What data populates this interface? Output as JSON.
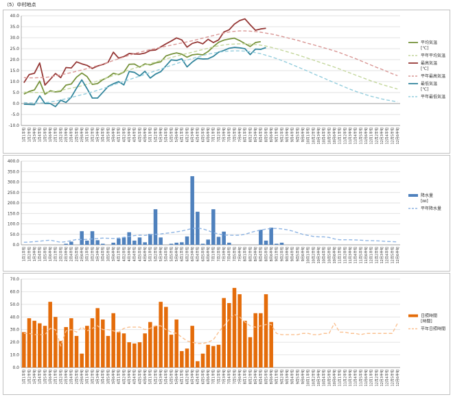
{
  "title": "（5）中村地点",
  "colors": {
    "temp_avg": "#77933c",
    "temp_max": "#953735",
    "temp_min": "#31859c",
    "norm_avg": "#c3d69b",
    "norm_max": "#d99694",
    "norm_min": "#93cddd",
    "precip": "#4f81bd",
    "norm_precip": "#8db3e2",
    "sun": "#e46c0a",
    "norm_sun": "#fac090",
    "grid": "#d9d9d9"
  },
  "x_ticks": [
    "1月1半旬",
    "1月2半旬",
    "1月3半旬",
    "1月4半旬",
    "1月5半旬",
    "1月6半旬",
    "2月1半旬",
    "2月2半旬",
    "2月3半旬",
    "2月4半旬",
    "2月5半旬",
    "2月6半旬",
    "3月1半旬",
    "3月2半旬",
    "3月3半旬",
    "3月4半旬",
    "3月5半旬",
    "3月6半旬",
    "4月1半旬",
    "4月2半旬",
    "4月3半旬",
    "4月4半旬",
    "4月5半旬",
    "4月6半旬",
    "5月1半旬",
    "5月2半旬",
    "5月3半旬",
    "5月4半旬",
    "5月5半旬",
    "5月6半旬",
    "6月1半旬",
    "6月2半旬",
    "6月3半旬",
    "6月4半旬",
    "6月5半旬",
    "6月6半旬",
    "7月1半旬",
    "7月2半旬",
    "7月3半旬",
    "7月4半旬",
    "7月5半旬",
    "7月6半旬",
    "8月1半旬",
    "8月2半旬",
    "8月3半旬",
    "8月4半旬",
    "8月5半旬",
    "8月6半旬",
    "9月1半旬",
    "9月2半旬",
    "9月3半旬",
    "9月4半旬",
    "9月5半旬",
    "9月6半旬",
    "10月1半旬",
    "10月2半旬",
    "10月3半旬",
    "10月4半旬",
    "10月5半旬",
    "10月6半旬",
    "11月1半旬",
    "11月2半旬",
    "11月3半旬",
    "11月4半旬",
    "11月5半旬",
    "11月6半旬",
    "12月1半旬",
    "12月2半旬",
    "12月3半旬",
    "12月4半旬",
    "12月5半旬",
    "12月6半旬"
  ],
  "chart_data": [
    {
      "type": "line",
      "ylim": [
        -10,
        40
      ],
      "yticks": [
        "-10.0",
        "-5.0",
        "0.0",
        "5.0",
        "10.0",
        "15.0",
        "20.0",
        "25.0",
        "30.0",
        "35.0",
        "40.0"
      ],
      "series": [
        {
          "name": "平均気温",
          "unit": "[℃]",
          "style": "solid",
          "color_key": "temp_avg",
          "values": [
            4.3,
            5.5,
            6.2,
            10.2,
            4.2,
            5.8,
            5.3,
            5.6,
            8.4,
            8.9,
            12.0,
            13.9,
            12.3,
            8.7,
            9.1,
            10.9,
            12.0,
            13.8,
            13.2,
            14.3,
            17.9,
            18.0,
            16.6,
            18.1,
            17.6,
            18.5,
            19.0,
            21.7,
            22.5,
            23.1,
            22.5,
            21.1,
            22.2,
            22.5,
            22.2,
            23.7,
            25.9,
            27.9,
            28.9,
            29.4,
            29.8,
            28.7,
            27.3,
            26.0,
            27.8,
            28.2,
            null,
            null,
            null,
            null,
            null,
            null,
            null,
            null,
            null,
            null,
            null,
            null,
            null,
            null,
            null,
            null,
            null,
            null,
            null,
            null,
            null,
            null,
            null,
            null,
            null,
            null
          ]
        },
        {
          "name": "平年平均気温",
          "style": "dashed",
          "color_key": "norm_avg",
          "values": [
            5.2,
            5.1,
            5.0,
            5.0,
            5.1,
            5.3,
            5.6,
            6.0,
            6.5,
            7.0,
            7.5,
            8.1,
            8.8,
            9.5,
            10.3,
            11.1,
            11.9,
            12.8,
            13.6,
            14.5,
            15.3,
            16.1,
            16.8,
            17.5,
            18.2,
            18.9,
            19.6,
            20.3,
            21.0,
            21.6,
            22.2,
            22.8,
            23.4,
            24.0,
            24.6,
            25.2,
            25.8,
            26.3,
            26.7,
            27.0,
            27.1,
            27.2,
            27.2,
            27.1,
            26.9,
            26.6,
            26.2,
            25.6,
            25.0,
            24.3,
            23.6,
            22.9,
            22.2,
            21.4,
            20.6,
            19.8,
            19.0,
            18.2,
            17.4,
            16.6,
            15.7,
            14.8,
            13.9,
            13.0,
            12.1,
            11.2,
            10.3,
            9.5,
            8.7,
            8.0,
            7.3,
            6.6
          ]
        },
        {
          "name": "最高気温",
          "unit": "[℃]",
          "style": "solid",
          "color_key": "temp_max",
          "values": [
            9.5,
            13.2,
            13.8,
            18.5,
            8.4,
            11.0,
            13.7,
            11.8,
            16.4,
            16.2,
            19.0,
            18.1,
            17.4,
            16.0,
            17.1,
            17.8,
            18.8,
            23.4,
            20.7,
            21.4,
            22.8,
            22.6,
            22.5,
            23.0,
            24.2,
            24.4,
            25.8,
            27.2,
            28.5,
            29.9,
            29.0,
            25.7,
            27.4,
            28.1,
            27.2,
            29.3,
            27.8,
            29.0,
            32.6,
            33.6,
            36.2,
            37.8,
            38.6,
            35.9,
            33.4,
            34.0,
            34.3,
            null,
            null,
            null,
            null,
            null,
            null,
            null,
            null,
            null,
            null,
            null,
            null,
            null,
            null,
            null,
            null,
            null,
            null,
            null,
            null,
            null,
            null,
            null,
            null,
            null
          ]
        },
        {
          "name": "平年最高気温",
          "style": "dashed",
          "color_key": "norm_max",
          "values": [
            11.8,
            11.7,
            11.7,
            11.8,
            11.9,
            12.2,
            12.6,
            13.1,
            13.6,
            14.1,
            14.7,
            15.3,
            15.9,
            16.6,
            17.3,
            18.0,
            18.8,
            19.6,
            20.4,
            21.2,
            22.0,
            22.7,
            23.4,
            24.0,
            24.6,
            25.1,
            25.6,
            26.1,
            26.6,
            27.1,
            27.6,
            28.1,
            28.6,
            29.2,
            29.8,
            30.4,
            31.0,
            31.6,
            32.1,
            32.6,
            32.9,
            33.1,
            33.1,
            33.0,
            32.8,
            32.5,
            32.1,
            31.7,
            31.2,
            30.6,
            30.0,
            29.4,
            28.8,
            28.1,
            27.4,
            26.8,
            26.1,
            25.4,
            24.7,
            24.0,
            23.2,
            22.3,
            21.4,
            20.5,
            19.5,
            18.5,
            17.5,
            16.5,
            15.6,
            14.6,
            13.6,
            12.7
          ]
        },
        {
          "name": "最低気温",
          "unit": "[℃]",
          "style": "solid",
          "color_key": "temp_min",
          "values": [
            -0.3,
            -0.4,
            -0.5,
            3.5,
            0.0,
            0.0,
            -1.4,
            1.5,
            0.5,
            2.9,
            7.0,
            10.8,
            6.8,
            2.5,
            2.5,
            5.1,
            7.8,
            9.0,
            10.0,
            8.5,
            14.6,
            14.2,
            12.6,
            14.7,
            11.6,
            13.4,
            14.5,
            17.2,
            19.9,
            19.6,
            20.4,
            16.7,
            18.9,
            20.6,
            20.3,
            20.4,
            21.5,
            23.4,
            24.2,
            25.2,
            25.6,
            25.4,
            25.0,
            22.3,
            24.8,
            24.7,
            25.5,
            null,
            null,
            null,
            null,
            null,
            null,
            null,
            null,
            null,
            null,
            null,
            null,
            null,
            null,
            null,
            null,
            null,
            null,
            null,
            null,
            null,
            null,
            null,
            null,
            null
          ]
        },
        {
          "name": "平年最低気温",
          "style": "dashed",
          "color_key": "norm_min",
          "values": [
            0.5,
            0.3,
            0.2,
            0.2,
            0.4,
            0.7,
            1.1,
            1.6,
            2.2,
            2.8,
            3.4,
            4.0,
            4.6,
            5.3,
            6.0,
            6.8,
            7.6,
            8.5,
            9.3,
            10.1,
            10.9,
            11.7,
            12.5,
            13.3,
            14.1,
            14.9,
            15.7,
            16.6,
            17.4,
            18.2,
            19.0,
            19.8,
            20.5,
            21.2,
            21.9,
            22.5,
            23.0,
            23.4,
            23.7,
            23.9,
            24.0,
            24.0,
            23.9,
            23.6,
            23.2,
            22.7,
            22.0,
            21.3,
            20.5,
            19.6,
            18.7,
            17.7,
            16.7,
            15.7,
            14.7,
            13.6,
            12.6,
            11.6,
            10.5,
            9.5,
            8.5,
            7.5,
            6.5,
            5.6,
            4.8,
            4.0,
            3.3,
            2.7,
            2.1,
            1.6,
            1.2,
            0.8
          ]
        }
      ]
    },
    {
      "type": "bar",
      "ylim": [
        0,
        400
      ],
      "yticks": [
        "0.0",
        "50.0",
        "100.0",
        "150.0",
        "200.0",
        "250.0",
        "300.0",
        "350.0",
        "400.0"
      ],
      "series": [
        {
          "name": "降水量",
          "unit": "[㎜]",
          "style": "bar",
          "color_key": "precip",
          "values": [
            0,
            0,
            0,
            0,
            0,
            0,
            0,
            0,
            5,
            15,
            0,
            65,
            20,
            65,
            22,
            5,
            0,
            10,
            30,
            35,
            60,
            20,
            35,
            12,
            52,
            170,
            35,
            0,
            5,
            10,
            12,
            40,
            328,
            158,
            5,
            25,
            170,
            38,
            63,
            10,
            0,
            0,
            0,
            0,
            0,
            72,
            20,
            82,
            5,
            10,
            null,
            null,
            null,
            null,
            null,
            null,
            null,
            null,
            null,
            null,
            null,
            null,
            null,
            null,
            null,
            null,
            null,
            null,
            null,
            null,
            null,
            null
          ]
        },
        {
          "name": "平年降水量",
          "style": "dashed",
          "color_key": "norm_precip",
          "values": [
            12,
            13,
            15,
            17,
            20,
            22,
            17,
            12,
            15,
            20,
            25,
            25,
            26,
            28,
            30,
            32,
            31,
            30,
            32,
            36,
            40,
            44,
            46,
            45,
            48,
            50,
            52,
            55,
            58,
            62,
            66,
            72,
            78,
            80,
            76,
            68,
            58,
            52,
            46,
            46,
            45,
            46,
            50,
            58,
            65,
            70,
            75,
            78,
            78,
            76,
            72,
            66,
            58,
            50,
            45,
            40,
            38,
            38,
            35,
            28,
            24,
            24,
            24,
            23,
            22,
            20,
            20,
            19,
            18,
            16,
            15,
            14
          ]
        }
      ]
    },
    {
      "type": "bar",
      "ylim": [
        0,
        70
      ],
      "yticks": [
        "0.0",
        "10.0",
        "20.0",
        "30.0",
        "40.0",
        "50.0",
        "60.0",
        "70.0"
      ],
      "series": [
        {
          "name": "日照時間",
          "unit": "[時間]",
          "style": "bar",
          "color_key": "sun",
          "values": [
            28,
            39,
            37,
            35,
            33,
            52,
            40,
            21,
            32,
            39,
            25,
            11,
            33,
            39,
            47,
            38,
            25,
            43,
            28,
            27,
            20,
            19,
            20,
            27,
            36,
            33,
            52,
            48,
            26,
            38,
            13,
            15,
            33,
            5,
            11,
            18,
            17,
            18,
            55,
            51,
            63,
            58,
            37,
            24,
            43,
            43,
            58,
            36,
            null,
            null,
            null,
            null,
            null,
            null,
            null,
            null,
            null,
            null,
            null,
            null,
            null,
            null,
            null,
            null,
            null,
            null,
            null,
            null,
            null,
            null,
            null,
            null
          ]
        },
        {
          "name": "平年日照時間",
          "style": "dashed",
          "color_key": "norm_sun",
          "values": [
            27,
            27,
            26,
            26,
            26,
            31,
            30,
            17,
            29,
            30,
            28,
            32,
            29,
            31,
            33,
            30,
            30,
            29,
            28,
            31,
            32,
            32,
            32,
            30,
            31,
            33,
            33,
            30,
            28,
            27,
            24,
            21,
            20,
            19,
            19,
            20,
            22,
            28,
            33,
            38,
            42,
            40,
            36,
            33,
            32,
            33,
            34,
            34,
            27,
            26,
            26,
            26,
            26,
            27,
            27,
            26,
            26,
            27,
            27,
            35,
            28,
            28,
            27,
            27,
            26,
            27,
            27,
            27,
            27,
            27,
            27,
            35
          ]
        }
      ]
    }
  ]
}
